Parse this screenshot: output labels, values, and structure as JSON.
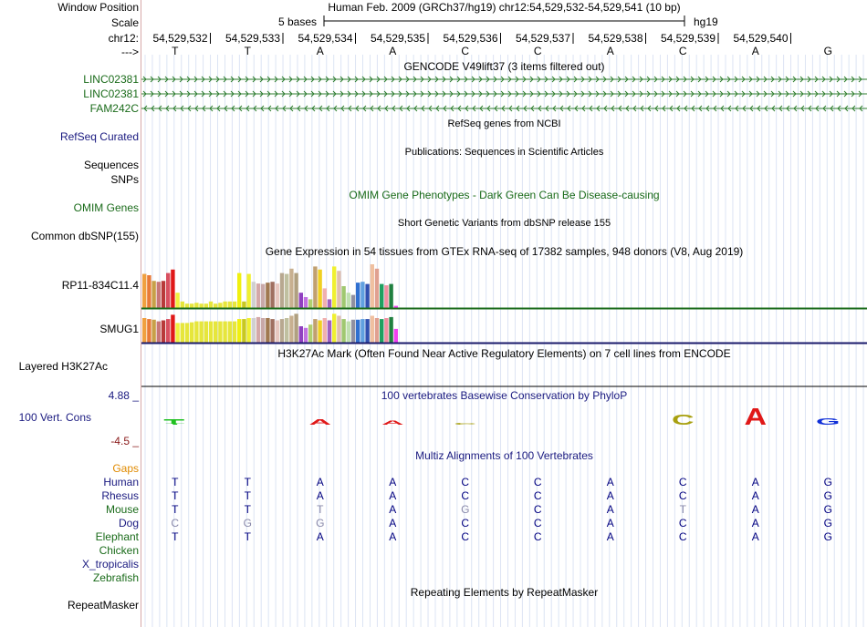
{
  "header": {
    "window_position_label": "Window Position",
    "scale_label": "Scale",
    "chrom_label": "chr12:",
    "strand_label": "--->",
    "assembly_text": "Human Feb. 2009 (GRCh37/hg19)   chr12:54,529,532-54,529,541 (10 bp)",
    "scale_text": "5 bases",
    "scale_db": "hg19",
    "positions": [
      "54,529,532",
      "54,529,533",
      "54,529,534",
      "54,529,535",
      "54,529,536",
      "54,529,537",
      "54,529,538",
      "54,529,539",
      "54,529,540"
    ],
    "bases": [
      "T",
      "T",
      "A",
      "A",
      "C",
      "C",
      "A",
      "C",
      "A",
      "G"
    ]
  },
  "tracks": {
    "gencode": {
      "title": "GENCODE V49lift37 (3 items filtered out)",
      "items": [
        {
          "label": "LINC02381",
          "strand": ">"
        },
        {
          "label": "LINC02381",
          "strand": ">"
        },
        {
          "label": "FAM242C",
          "strand": "<"
        }
      ],
      "color": "#2e7d2e"
    },
    "refseq": {
      "title": "RefSeq genes from NCBI",
      "label": "RefSeq Curated"
    },
    "publications": {
      "title": "Publications: Sequences in Scientific Articles",
      "label1": "Sequences",
      "label2": "SNPs"
    },
    "omim": {
      "title": "OMIM Gene Phenotypes - Dark Green Can Be Disease-causing",
      "label": "OMIM Genes"
    },
    "dbsnp": {
      "title": "Short Genetic Variants from dbSNP release 155",
      "label": "Common dbSNP(155)"
    },
    "gtex": {
      "title": "Gene Expression in 54 tissues from GTEx RNA-seq of 17382 samples, 948 donors (V8, Aug 2019)",
      "genes": [
        {
          "label": "RP11-834C11.4",
          "values": [
            0.78,
            0.75,
            0.62,
            0.6,
            0.62,
            0.8,
            0.88,
            0.35,
            0.15,
            0.1,
            0.1,
            0.12,
            0.1,
            0.1,
            0.15,
            0.1,
            0.12,
            0.15,
            0.15,
            0.15,
            0.8,
            0.15,
            0.78,
            0.6,
            0.56,
            0.55,
            0.58,
            0.6,
            0.56,
            0.8,
            0.78,
            0.9,
            0.8,
            0.35,
            0.25,
            0.2,
            0.95,
            0.88,
            0.45,
            0.2,
            0.95,
            0.85,
            0.5,
            0.35,
            0.3,
            0.58,
            0.6,
            0.55,
            1.0,
            0.9,
            0.55,
            0.52,
            0.55,
            0.05
          ]
        },
        {
          "label": "SMUG1",
          "values": [
            0.75,
            0.72,
            0.7,
            0.65,
            0.68,
            0.72,
            0.85,
            0.6,
            0.6,
            0.6,
            0.62,
            0.65,
            0.65,
            0.65,
            0.65,
            0.65,
            0.65,
            0.65,
            0.65,
            0.65,
            0.72,
            0.72,
            0.75,
            0.75,
            0.78,
            0.75,
            0.75,
            0.72,
            0.68,
            0.72,
            0.75,
            0.82,
            0.88,
            0.5,
            0.45,
            0.55,
            0.72,
            0.68,
            0.75,
            0.68,
            0.88,
            0.82,
            0.72,
            0.65,
            0.7,
            0.7,
            0.72,
            0.72,
            0.82,
            0.75,
            0.72,
            0.75,
            0.78,
            0.42
          ]
        }
      ],
      "colors": [
        "#f0a040",
        "#e87a38",
        "#c8a048",
        "#c87878",
        "#b83a3a",
        "#d85060",
        "#e01818",
        "#f0f040",
        "#e6e63c",
        "#e6e63c",
        "#e6e63c",
        "#e6e63c",
        "#e6e63c",
        "#e6e63c",
        "#e6e63c",
        "#e6e63c",
        "#e6e63c",
        "#e6e63c",
        "#e6e63c",
        "#e6e63c",
        "#f0f010",
        "#c8c820",
        "#f0f030",
        "#d0d0d0",
        "#d4a8a8",
        "#c8a8a8",
        "#a07850",
        "#a07060",
        "#e8c8c0",
        "#b8a890",
        "#c0c0a0",
        "#c8b090",
        "#b0a080",
        "#9040c0",
        "#c070e0",
        "#b0d070",
        "#c0a070",
        "#f0d020",
        "#f0b0b0",
        "#a060c0",
        "#f0f030",
        "#e0c0b0",
        "#a0c870",
        "#c0e0b0",
        "#9090a0",
        "#3070d0",
        "#60a0e0",
        "#3050b0",
        "#f0c0a0",
        "#e0a090",
        "#20a060",
        "#f090a0",
        "#208040",
        "#f040f0"
      ],
      "row_colors": [
        "#1a6b1a",
        "#1a1a6b"
      ]
    },
    "h3k27ac": {
      "title": "H3K27Ac Mark (Often Found Near Active Regulatory Elements) on 7 cell lines from ENCODE",
      "label": "Layered H3K27Ac"
    },
    "phylop": {
      "title": "100 vertebrates Basewise Conservation by PhyloP",
      "label": "100 Vert. Cons",
      "max_label": "4.88 _",
      "min_label": "-4.5 _",
      "values": [
        0.1,
        0.0,
        0.8,
        0.6,
        0.3,
        0.0,
        0.0,
        1.5,
        2.5,
        1.0
      ],
      "base_colors": {
        "A": "#e01818",
        "C": "#a8a010",
        "G": "#1030d8",
        "T": "#20c020"
      }
    },
    "multiz": {
      "title": "Multiz Alignments of 100 Vertebrates",
      "gaps_label": "Gaps",
      "species": [
        {
          "name": "Human",
          "color": "#1a1a80",
          "seq": [
            "T",
            "T",
            "A",
            "A",
            "C",
            "C",
            "A",
            "C",
            "A",
            "G"
          ],
          "dim": []
        },
        {
          "name": "Rhesus",
          "color": "#1a1a80",
          "seq": [
            "T",
            "T",
            "A",
            "A",
            "C",
            "C",
            "A",
            "C",
            "A",
            "G"
          ],
          "dim": []
        },
        {
          "name": "Mouse",
          "color": "#1a6b1a",
          "seq": [
            "T",
            "T",
            "T",
            "A",
            "G",
            "C",
            "A",
            "T",
            "A",
            "G"
          ],
          "dim": [
            2,
            4,
            7
          ]
        },
        {
          "name": "Dog",
          "color": "#1a1a80",
          "seq": [
            "C",
            "G",
            "G",
            "A",
            "C",
            "C",
            "A",
            "C",
            "A",
            "G"
          ],
          "dim": [
            0,
            1,
            2
          ]
        },
        {
          "name": "Elephant",
          "color": "#1a6b1a",
          "seq": [
            "T",
            "T",
            "A",
            "A",
            "C",
            "C",
            "A",
            "C",
            "A",
            "G"
          ],
          "dim": []
        },
        {
          "name": "Chicken",
          "color": "#1a6b1a",
          "seq": [],
          "dim": []
        },
        {
          "name": "X_tropicalis",
          "color": "#1a1a80",
          "seq": [],
          "dim": []
        },
        {
          "name": "Zebrafish",
          "color": "#1a6b1a",
          "seq": [],
          "dim": []
        }
      ]
    },
    "repeatmasker": {
      "title": "Repeating Elements by RepeatMasker",
      "label": "RepeatMasker"
    }
  },
  "colors": {
    "blue_label": "#1a1a80",
    "green_label": "#1a6b1a",
    "orange_label": "#e08a00",
    "red_label": "#8a1a1a",
    "base_text": "#000080",
    "dim_base": "#8888aa"
  }
}
